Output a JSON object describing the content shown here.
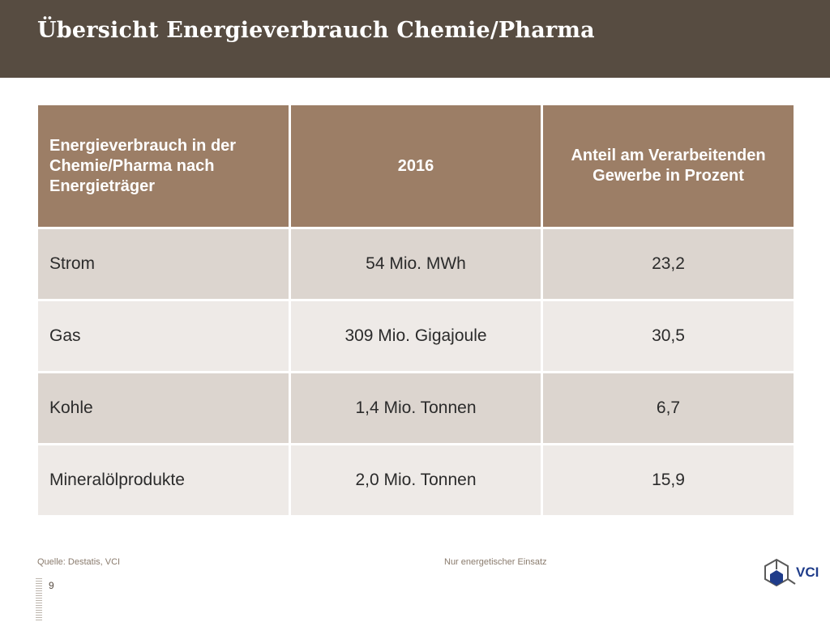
{
  "title": "Übersicht Energieverbrauch Chemie/Pharma",
  "table": {
    "headers": [
      "Energieverbrauch in der Chemie/Pharma nach Energieträger",
      "2016",
      "Anteil am Verarbeitenden Gewerbe in Prozent"
    ],
    "rows": [
      [
        "Strom",
        "54 Mio. MWh",
        "23,2"
      ],
      [
        "Gas",
        "309 Mio. Gigajoule",
        "30,5"
      ],
      [
        "Kohle",
        "1,4 Mio. Tonnen",
        "6,7"
      ],
      [
        "Mineralölprodukte",
        "2,0 Mio. Tonnen",
        "15,9"
      ]
    ]
  },
  "footer": {
    "source": "Quelle: Destatis, VCI",
    "note": "Nur energetischer Einsatz",
    "page_number": "9",
    "logo_text": "VCI"
  },
  "colors": {
    "title_bar": "#574c41",
    "header_bg": "#9c7e66",
    "row_dark": "#dcd5cf",
    "row_light": "#eeeae7",
    "logo_blue": "#1f3c8a"
  }
}
